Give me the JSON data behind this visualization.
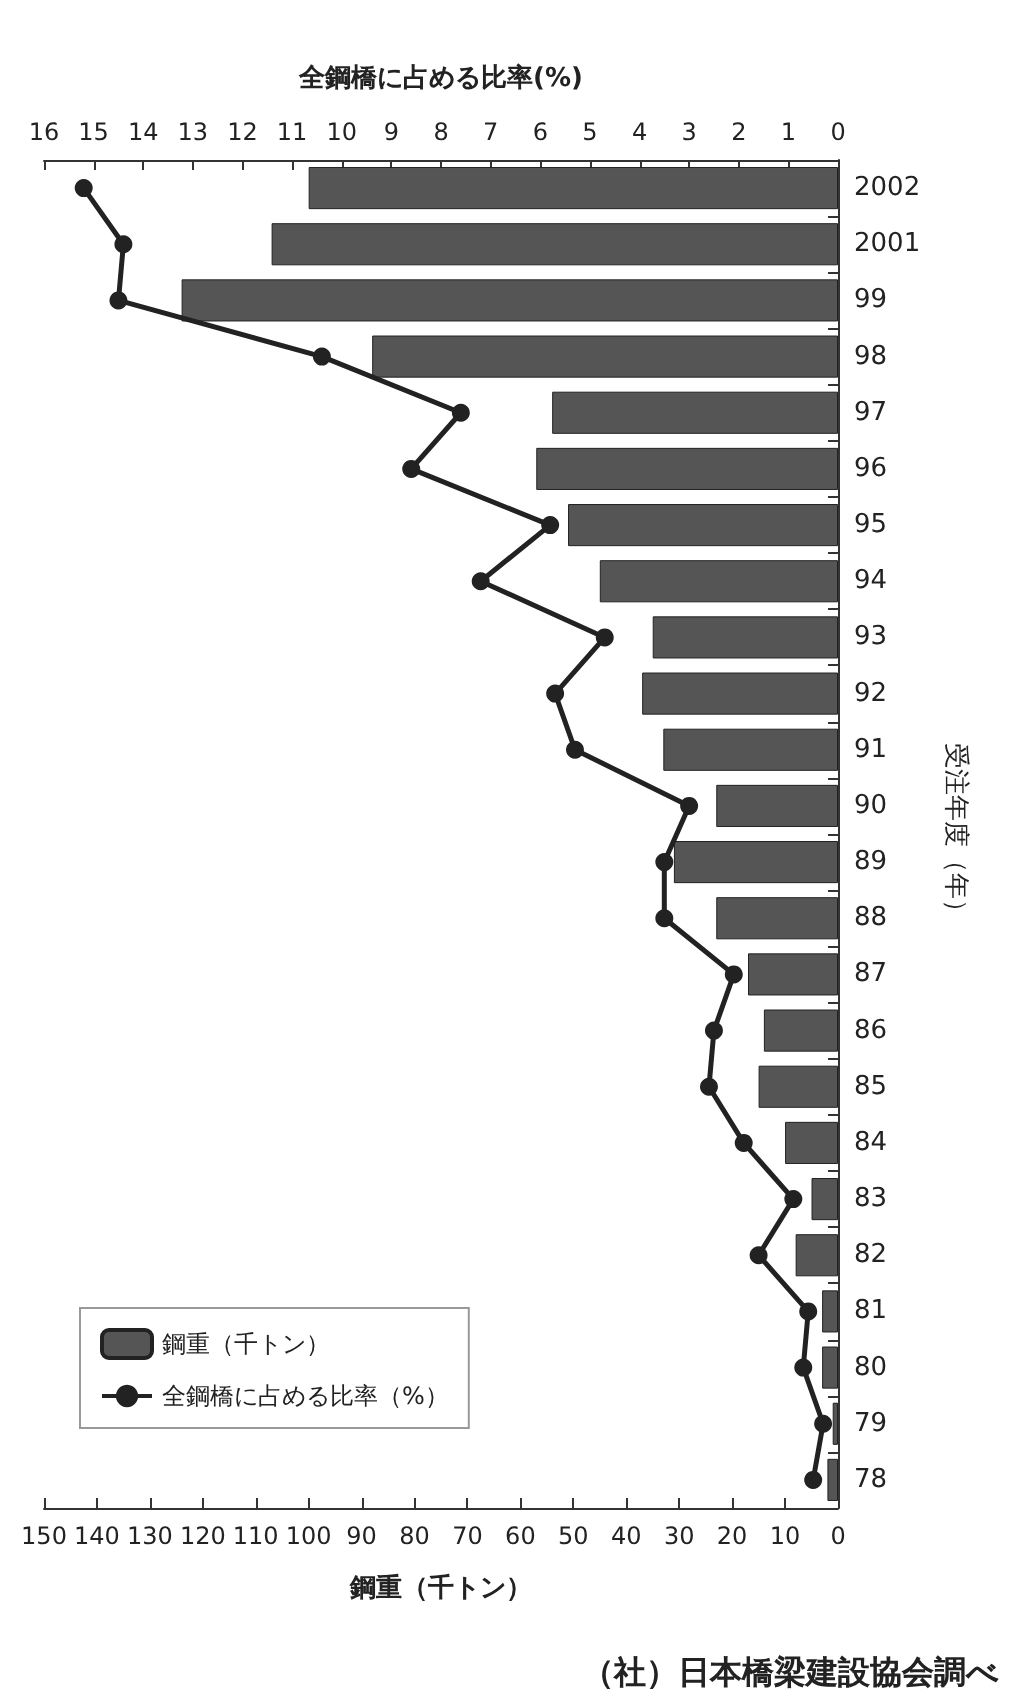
{
  "chart_data": {
    "type": "bar",
    "orientation": "horizontal",
    "categories": [
      "2002",
      "2001",
      "99",
      "98",
      "97",
      "96",
      "95",
      "94",
      "93",
      "92",
      "91",
      "90",
      "89",
      "88",
      "87",
      "86",
      "85",
      "84",
      "83",
      "82",
      "81",
      "80",
      "79",
      "78"
    ],
    "series": [
      {
        "name": "鋼重（千トン）",
        "color": "#555555",
        "values": [
          100,
          107,
          124,
          88,
          54,
          57,
          51,
          45,
          35,
          37,
          33,
          23,
          31,
          23,
          17,
          14,
          15,
          10,
          5,
          8,
          3,
          3,
          1,
          2
        ]
      },
      {
        "type": "line",
        "axis": "x2",
        "name": "全鋼橋に占める比率（%）",
        "color": "#222222",
        "values": [
          15.2,
          14.4,
          14.5,
          10.4,
          7.6,
          8.6,
          5.8,
          7.2,
          4.7,
          5.7,
          5.3,
          3.0,
          3.5,
          3.5,
          2.1,
          2.5,
          2.6,
          1.9,
          0.9,
          1.6,
          0.6,
          0.7,
          0.3,
          0.5
        ]
      }
    ],
    "xlim": [
      150,
      0
    ],
    "xticks": [
      0,
      10,
      20,
      30,
      40,
      50,
      60,
      70,
      80,
      90,
      100,
      110,
      120,
      130,
      140,
      150
    ],
    "x2lim": [
      16,
      0
    ],
    "x2ticks": [
      0,
      1,
      2,
      3,
      4,
      5,
      6,
      7,
      8,
      9,
      10,
      11,
      12,
      13,
      14,
      15,
      16
    ],
    "xlabel": "鋼重（千トン）",
    "x2label": "全鋼橋に占める比率(%)",
    "ylabel": "受注年度（年）",
    "legend": "bottom left",
    "marker": "circle",
    "annotations": [
      "（社）日本橋梁建設協会調べ"
    ]
  }
}
